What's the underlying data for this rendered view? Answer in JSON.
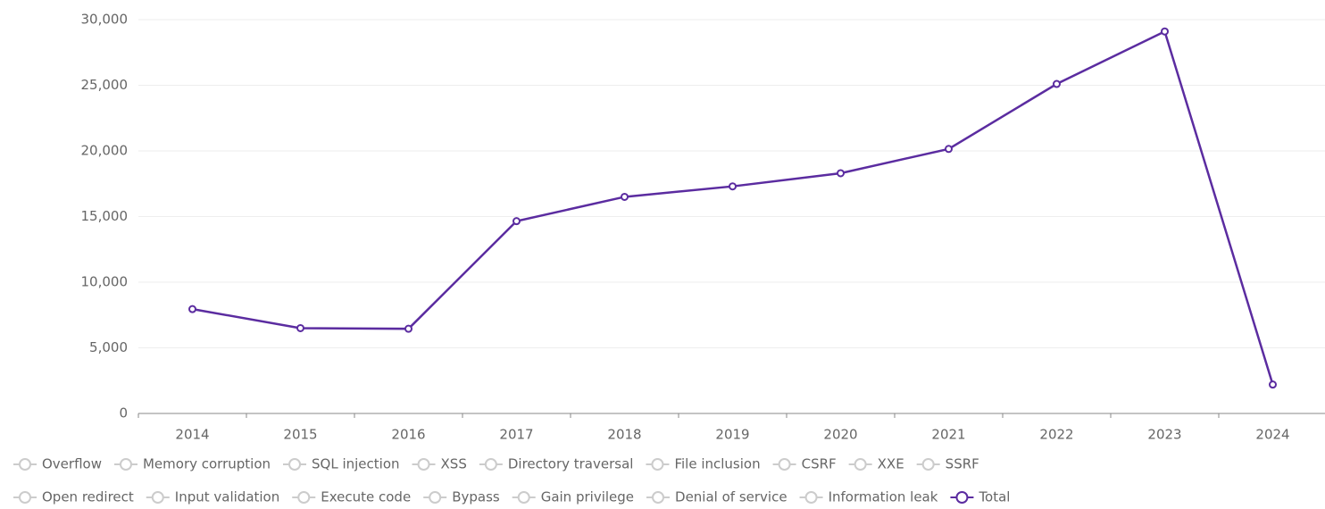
{
  "chart_data": {
    "type": "line",
    "categories": [
      "2014",
      "2015",
      "2016",
      "2017",
      "2018",
      "2019",
      "2020",
      "2021",
      "2022",
      "2023",
      "2024"
    ],
    "series": [
      {
        "name": "Total",
        "color": "#5b2ca0",
        "values": [
          7950,
          6500,
          6450,
          14650,
          16500,
          17300,
          18300,
          20150,
          25100,
          29100,
          2200
        ]
      }
    ],
    "hidden_series": [
      "Overflow",
      "Memory corruption",
      "SQL injection",
      "XSS",
      "Directory traversal",
      "File inclusion",
      "CSRF",
      "XXE",
      "SSRF",
      "Open redirect",
      "Input validation",
      "Execute code",
      "Bypass",
      "Gain privilege",
      "Denial of service",
      "Information leak"
    ],
    "hidden_color": "#cccccc",
    "ylim": [
      0,
      30000
    ],
    "yticks": [
      0,
      {
        "value": 5000,
        "label": "5,000"
      },
      {
        "value": 10000,
        "label": "10,000"
      },
      {
        "value": 15000,
        "label": "15,000"
      },
      {
        "value": 20000,
        "label": "20,000"
      },
      {
        "value": 25000,
        "label": "25,000"
      },
      {
        "value": 30000,
        "label": "30,000"
      }
    ],
    "grid": true
  }
}
